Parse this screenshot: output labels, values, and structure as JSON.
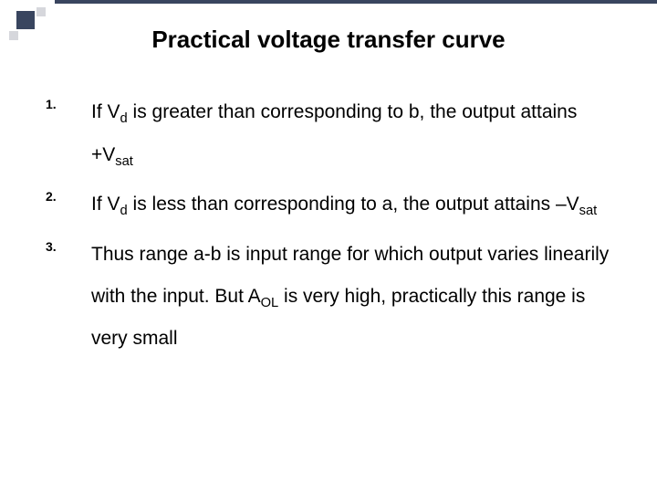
{
  "decoration": {
    "big_square_color": "#39455f",
    "small_square_color": "#d6d7dc",
    "bar_color": "#39455f"
  },
  "title": "Practical voltage transfer curve",
  "items": [
    {
      "num": "1.",
      "text_html": "If V<sub>d</sub> is greater than corresponding to b, the output attains +V<sub>sat</sub>"
    },
    {
      "num": "2.",
      "text_html": "If V<sub>d</sub> is less than corresponding to a, the output attains –V<sub>sat</sub>"
    },
    {
      "num": "3.",
      "text_html": "Thus range a-b is input range for which output varies linearily with the input. But A<sub>OL</sub> is very high, practically this range is very small"
    }
  ]
}
